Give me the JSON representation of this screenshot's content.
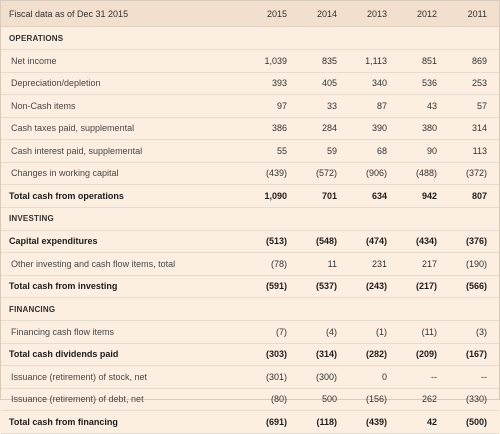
{
  "table": {
    "caption": "Fiscal data as of Dec 31 2015",
    "years": [
      "2015",
      "2014",
      "2013",
      "2012",
      "2011"
    ],
    "sections": [
      {
        "title": "OPERATIONS",
        "rows": [
          {
            "label": "Net income",
            "values": [
              "1,039",
              "835",
              "1,113",
              "851",
              "869"
            ],
            "total": false
          },
          {
            "label": "Depreciation/depletion",
            "values": [
              "393",
              "405",
              "340",
              "536",
              "253"
            ],
            "total": false
          },
          {
            "label": "Non-Cash items",
            "values": [
              "97",
              "33",
              "87",
              "43",
              "57"
            ],
            "total": false
          },
          {
            "label": "Cash taxes paid, supplemental",
            "values": [
              "386",
              "284",
              "390",
              "380",
              "314"
            ],
            "total": false
          },
          {
            "label": "Cash interest paid, supplemental",
            "values": [
              "55",
              "59",
              "68",
              "90",
              "113"
            ],
            "total": false
          },
          {
            "label": "Changes in working capital",
            "values": [
              "(439)",
              "(572)",
              "(906)",
              "(488)",
              "(372)"
            ],
            "total": false
          },
          {
            "label": "Total cash from operations",
            "values": [
              "1,090",
              "701",
              "634",
              "942",
              "807"
            ],
            "total": true
          }
        ]
      },
      {
        "title": "INVESTING",
        "rows": [
          {
            "label": "Capital expenditures",
            "values": [
              "(513)",
              "(548)",
              "(474)",
              "(434)",
              "(376)"
            ],
            "total": true
          },
          {
            "label": "Other investing and cash flow items, total",
            "values": [
              "(78)",
              "11",
              "231",
              "217",
              "(190)"
            ],
            "total": false
          },
          {
            "label": "Total cash from investing",
            "values": [
              "(591)",
              "(537)",
              "(243)",
              "(217)",
              "(566)"
            ],
            "total": true
          }
        ]
      },
      {
        "title": "FINANCING",
        "rows": [
          {
            "label": "Financing cash flow items",
            "values": [
              "(7)",
              "(4)",
              "(1)",
              "(11)",
              "(3)"
            ],
            "total": false
          },
          {
            "label": "Total cash dividends paid",
            "values": [
              "(303)",
              "(314)",
              "(282)",
              "(209)",
              "(167)"
            ],
            "total": true
          },
          {
            "label": "Issuance (retirement) of stock, net",
            "values": [
              "(301)",
              "(300)",
              "0",
              "--",
              "--"
            ],
            "total": false
          },
          {
            "label": "Issuance (retirement) of debt, net",
            "values": [
              "(80)",
              "500",
              "(156)",
              "262",
              "(330)"
            ],
            "total": false
          },
          {
            "label": "Total cash from financing",
            "values": [
              "(691)",
              "(118)",
              "(439)",
              "42",
              "(500)"
            ],
            "total": true
          }
        ]
      }
    ]
  }
}
